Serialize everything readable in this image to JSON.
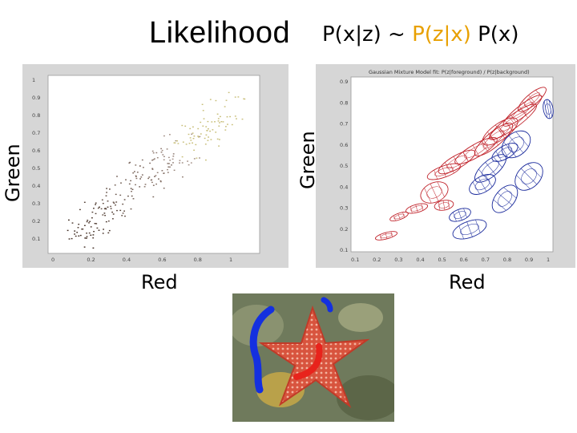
{
  "title": "Likelihood",
  "formula": {
    "lhs": "P(x|z) ~ ",
    "highlight": "P(z|x)",
    "rhs": " P(x)"
  },
  "left_plot": {
    "ylabel": "Green",
    "xlabel": "Red",
    "yticks": [
      "1",
      "0.9",
      "0.8",
      "0.7",
      "0.6",
      "0.5",
      "0.4",
      "0.3",
      "0.2",
      "0.1"
    ],
    "xticks": [
      "0",
      "0.2",
      "0.4",
      "0.6",
      "0.8",
      "1"
    ]
  },
  "right_plot": {
    "ylabel": "Green",
    "xlabel": "Red",
    "title": "Gaussian Mixture Model fit: P(z|foreground) / P(z|background)",
    "yticks": [
      "0.9",
      "0.8",
      "0.7",
      "0.6",
      "0.5",
      "0.4",
      "0.3",
      "0.2",
      "0.1"
    ],
    "xticks": [
      "0.1",
      "0.2",
      "0.3",
      "0.4",
      "0.5",
      "0.6",
      "0.7",
      "0.8",
      "0.9",
      "1"
    ],
    "colors": {
      "foreground": "#c0222a",
      "background": "#1a2a9c"
    }
  },
  "photo": {
    "subject": "starfish",
    "stroke_colors": {
      "foreground": "#e8231c",
      "background": "#1430e0"
    }
  }
}
